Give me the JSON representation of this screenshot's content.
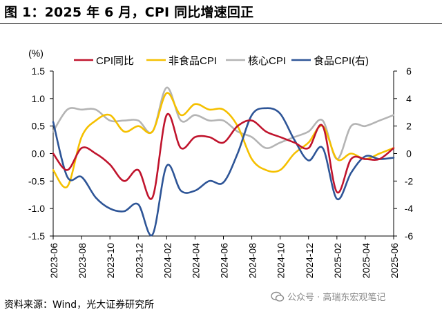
{
  "header": {
    "title": "图 1：2025 年 6 月，CPI 同比增速回正"
  },
  "footer": {
    "source": "资料来源：Wind，光大证券研究所",
    "watermark": "公众号 · 高瑞东宏观笔记"
  },
  "chart_data": {
    "type": "line",
    "title": "图 1：2025 年 6 月，CPI 同比增速回正",
    "ylabel_left": "(%)",
    "ylim_left": [
      -1.5,
      1.5
    ],
    "yticks_left": [
      "1.5",
      "1.0",
      "0.5",
      "0.0",
      "-0.5",
      "-1.0",
      "-1.5"
    ],
    "ylim_right": [
      -6,
      6
    ],
    "yticks_right": [
      "6",
      "4",
      "2",
      "0",
      "-2",
      "-4",
      "-6"
    ],
    "xtick_labels": [
      "2023-06",
      "2023-08",
      "2023-10",
      "2023-12",
      "2024-02",
      "2024-04",
      "2024-06",
      "2024-08",
      "2024-10",
      "2024-12",
      "2025-02",
      "2025-04",
      "2025-06"
    ],
    "categories": [
      "2023-06",
      "2023-07",
      "2023-08",
      "2023-09",
      "2023-10",
      "2023-11",
      "2023-12",
      "2024-01",
      "2024-02",
      "2024-03",
      "2024-04",
      "2024-05",
      "2024-06",
      "2024-07",
      "2024-08",
      "2024-09",
      "2024-10",
      "2024-11",
      "2024-12",
      "2025-01",
      "2025-02",
      "2025-03",
      "2025-04",
      "2025-05",
      "2025-06"
    ],
    "series": [
      {
        "name": "CPI同比",
        "axis": "left",
        "color": "#c0142d",
        "values": [
          0.0,
          -0.3,
          0.1,
          0.0,
          -0.2,
          -0.5,
          -0.3,
          -0.8,
          0.7,
          0.1,
          0.3,
          0.3,
          0.2,
          0.5,
          0.6,
          0.4,
          0.3,
          0.2,
          0.1,
          0.5,
          -0.7,
          -0.1,
          -0.1,
          -0.1,
          0.1
        ]
      },
      {
        "name": "非食品CPI",
        "axis": "left",
        "color": "#f5c000",
        "values": [
          -0.3,
          -0.6,
          0.3,
          0.6,
          0.7,
          0.4,
          0.5,
          0.4,
          1.1,
          0.7,
          0.9,
          0.8,
          0.8,
          0.5,
          -0.1,
          -0.3,
          -0.3,
          0.0,
          0.2,
          0.5,
          -0.1,
          0.0,
          -0.1,
          0.0,
          0.1
        ]
      },
      {
        "name": "核心CPI",
        "axis": "left",
        "color": "#b4b4b4",
        "values": [
          0.4,
          0.8,
          0.8,
          0.8,
          0.6,
          0.6,
          0.6,
          0.4,
          1.2,
          0.6,
          0.7,
          0.6,
          0.6,
          0.4,
          0.3,
          0.1,
          0.2,
          0.3,
          0.4,
          0.6,
          -0.1,
          0.5,
          0.5,
          0.6,
          0.7
        ]
      },
      {
        "name": "食品CPI(右)",
        "axis": "right",
        "color": "#2e5597",
        "values": [
          2.3,
          -1.7,
          -1.7,
          -3.2,
          -4.0,
          -4.2,
          -3.7,
          -5.9,
          -0.9,
          -2.7,
          -2.7,
          -2.0,
          -2.1,
          0.0,
          2.8,
          3.3,
          2.9,
          1.0,
          -0.5,
          0.4,
          -3.3,
          -1.4,
          -0.2,
          -0.4,
          -0.3
        ]
      }
    ],
    "legend": {
      "position": "top",
      "labels": [
        "CPI同比",
        "非食品CPI",
        "核心CPI",
        "食品CPI(右)"
      ]
    }
  }
}
